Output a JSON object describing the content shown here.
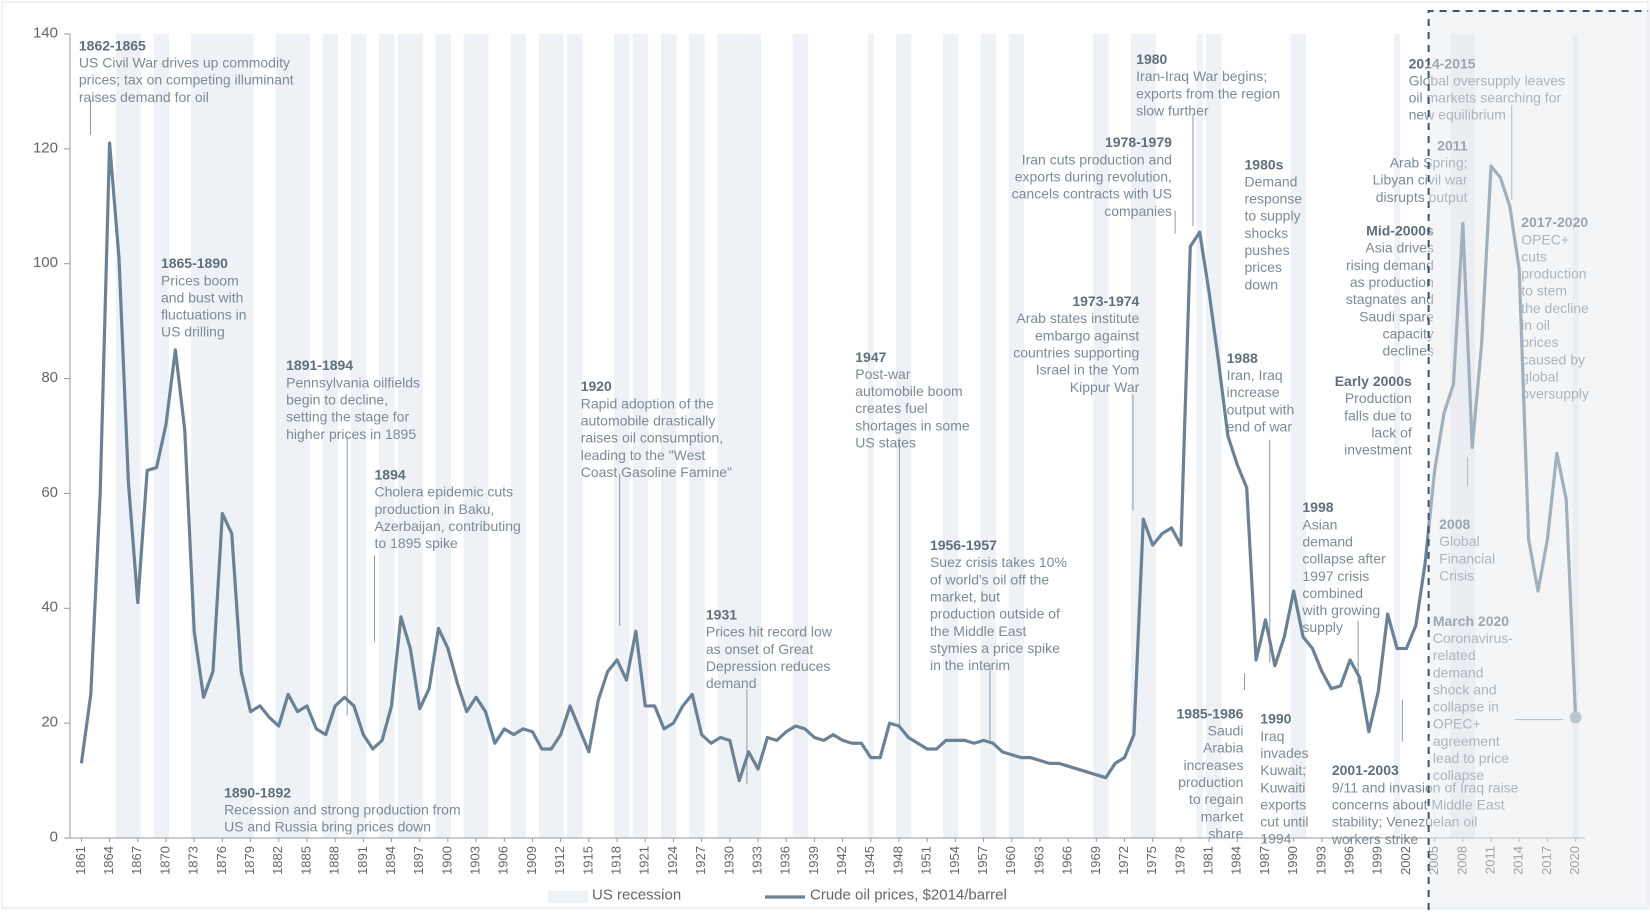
{
  "chart_data": {
    "type": "line",
    "ylim": [
      0,
      140
    ],
    "yticks": [
      0,
      20,
      40,
      60,
      80,
      100,
      120,
      140
    ],
    "xlim": [
      1860,
      2021
    ],
    "xticks": [
      1861,
      1864,
      1867,
      1870,
      1873,
      1876,
      1879,
      1882,
      1885,
      1888,
      1891,
      1894,
      1897,
      1900,
      1903,
      1906,
      1909,
      1912,
      1915,
      1918,
      1921,
      1924,
      1927,
      1930,
      1933,
      1936,
      1939,
      1942,
      1945,
      1948,
      1951,
      1954,
      1957,
      1960,
      1963,
      1966,
      1969,
      1972,
      1975,
      1978,
      1981,
      1984,
      1987,
      1990,
      1993,
      1996,
      1999,
      2002,
      2005,
      2008,
      2011,
      2014,
      2017,
      2020
    ],
    "x": [
      1861,
      1862,
      1863,
      1864,
      1865,
      1866,
      1867,
      1868,
      1869,
      1870,
      1871,
      1872,
      1873,
      1874,
      1875,
      1876,
      1877,
      1878,
      1879,
      1880,
      1881,
      1882,
      1883,
      1884,
      1885,
      1886,
      1887,
      1888,
      1889,
      1890,
      1891,
      1892,
      1893,
      1894,
      1895,
      1896,
      1897,
      1898,
      1899,
      1900,
      1901,
      1902,
      1903,
      1904,
      1905,
      1906,
      1907,
      1908,
      1909,
      1910,
      1911,
      1912,
      1913,
      1914,
      1915,
      1916,
      1917,
      1918,
      1919,
      1920,
      1921,
      1922,
      1923,
      1924,
      1925,
      1926,
      1927,
      1928,
      1929,
      1930,
      1931,
      1932,
      1933,
      1934,
      1935,
      1936,
      1937,
      1938,
      1939,
      1940,
      1941,
      1942,
      1943,
      1944,
      1945,
      1946,
      1947,
      1948,
      1949,
      1950,
      1951,
      1952,
      1953,
      1954,
      1955,
      1956,
      1957,
      1958,
      1959,
      1960,
      1961,
      1962,
      1963,
      1964,
      1965,
      1966,
      1967,
      1968,
      1969,
      1970,
      1971,
      1972,
      1973,
      1974,
      1975,
      1976,
      1977,
      1978,
      1979,
      1980,
      1981,
      1982,
      1983,
      1984,
      1985,
      1986,
      1987,
      1988,
      1989,
      1990,
      1991,
      1992,
      1993,
      1994,
      1995,
      1996,
      1997,
      1998,
      1999,
      2000,
      2001,
      2002,
      2003,
      2004,
      2005,
      2006,
      2007,
      2008,
      2009,
      2010,
      2011,
      2012,
      2013,
      2014,
      2015,
      2016,
      2017,
      2018,
      2019,
      2020
    ],
    "series": [
      {
        "name": "Crude oil prices, $2014/barrel",
        "color": "#6b8296",
        "values": [
          13,
          25,
          60,
          121,
          101,
          62,
          41,
          64,
          64.5,
          72,
          85,
          71,
          36,
          24.5,
          29,
          56.5,
          53,
          29,
          22,
          23,
          21,
          19.5,
          25,
          22,
          23,
          19,
          18,
          23,
          24.5,
          23,
          18,
          15.5,
          17,
          23,
          38.5,
          33,
          22.5,
          26,
          36.5,
          33,
          27,
          22,
          24.5,
          22,
          16.5,
          19,
          18,
          19,
          18.5,
          15.5,
          15.5,
          18,
          23,
          19,
          15,
          24,
          29,
          31,
          27.5,
          36,
          23,
          23,
          19,
          20,
          23,
          25,
          18,
          16.5,
          17.5,
          17,
          10,
          15,
          12,
          17.5,
          17,
          18.5,
          19.5,
          19,
          17.5,
          17,
          18,
          17,
          16.5,
          16.5,
          14,
          14,
          20,
          19.5,
          17.5,
          16.5,
          15.5,
          15.5,
          17,
          17,
          17,
          16.5,
          17,
          16.5,
          15,
          14.5,
          14,
          14,
          13.5,
          13,
          13,
          12.5,
          12,
          11.5,
          11,
          10.5,
          13,
          14,
          18,
          55.5,
          51,
          53,
          54,
          51,
          103,
          105.5,
          95,
          83,
          70,
          65,
          61,
          31,
          38,
          30,
          35,
          43,
          35,
          33,
          29,
          26,
          26.5,
          31,
          28,
          18.5,
          25.5,
          39,
          33,
          33,
          37,
          48,
          64,
          74,
          79,
          107,
          68,
          86,
          117,
          115,
          110,
          99,
          52,
          43,
          52,
          67,
          59,
          21
        ]
      }
    ],
    "recession_name": "US recession",
    "recession_color": "#eef1f5",
    "recessions": [
      {
        "start": 1865,
        "end": 1867
      },
      {
        "start": 1869,
        "end": 1870
      },
      {
        "start": 1873,
        "end": 1879
      },
      {
        "start": 1882,
        "end": 1885
      },
      {
        "start": 1887,
        "end": 1888
      },
      {
        "start": 1890,
        "end": 1891
      },
      {
        "start": 1893,
        "end": 1894
      },
      {
        "start": 1895,
        "end": 1897
      },
      {
        "start": 1899,
        "end": 1900
      },
      {
        "start": 1902,
        "end": 1904
      },
      {
        "start": 1907,
        "end": 1908
      },
      {
        "start": 1910,
        "end": 1912
      },
      {
        "start": 1913,
        "end": 1914
      },
      {
        "start": 1918,
        "end": 1919
      },
      {
        "start": 1920,
        "end": 1921
      },
      {
        "start": 1923,
        "end": 1924
      },
      {
        "start": 1926,
        "end": 1927
      },
      {
        "start": 1929,
        "end": 1933
      },
      {
        "start": 1937,
        "end": 1938
      },
      {
        "start": 1945,
        "end": 1945
      },
      {
        "start": 1948,
        "end": 1949
      },
      {
        "start": 1953,
        "end": 1954
      },
      {
        "start": 1957,
        "end": 1958
      },
      {
        "start": 1960,
        "end": 1961
      },
      {
        "start": 1969,
        "end": 1970
      },
      {
        "start": 1973,
        "end": 1975
      },
      {
        "start": 1980,
        "end": 1980
      },
      {
        "start": 1981,
        "end": 1982
      },
      {
        "start": 1990,
        "end": 1991
      },
      {
        "start": 2001,
        "end": 2001
      },
      {
        "start": 2007,
        "end": 2009
      },
      {
        "start": 2020,
        "end": 2020
      }
    ],
    "annotations": [
      {
        "title": "1862-1865",
        "lines": [
          "US Civil War drives up commodity",
          "prices; tax on competing illuminant",
          "raises demand for oil"
        ]
      },
      {
        "title": "1865-1890",
        "lines": [
          "Prices boom",
          "and bust with",
          "fluctuations in",
          "US drilling"
        ]
      },
      {
        "title": "1891-1894",
        "lines": [
          "Pennsylvania oilfields",
          "begin to decline,",
          "setting the stage for",
          "higher prices in 1895"
        ]
      },
      {
        "title": "1894",
        "lines": [
          "Cholera epidemic cuts",
          "production in Baku,",
          "Azerbaijan, contributing",
          "to 1895 spike"
        ]
      },
      {
        "title": "1890-1892",
        "lines": [
          "Recession and strong production from",
          "US and Russia bring prices down"
        ]
      },
      {
        "title": "1920",
        "lines": [
          "Rapid adoption of the",
          "automobile drastically",
          "raises oil consumption,",
          "leading to the \"West",
          "Coast Gasoline Famine\""
        ]
      },
      {
        "title": "1931",
        "lines": [
          "Prices hit record low",
          "as onset of Great",
          "Depression reduces",
          "demand"
        ]
      },
      {
        "title": "1947",
        "lines": [
          "Post-war",
          "automobile boom",
          "creates fuel",
          "shortages in some",
          "US states"
        ]
      },
      {
        "title": "1956-1957",
        "lines": [
          "Suez crisis takes 10%",
          "of world's oil off the",
          "market, but",
          "production outside of",
          "the Middle East",
          "stymies a price spike",
          "in the interim"
        ]
      },
      {
        "title": "1973-1974",
        "lines": [
          "Arab states institute",
          "embargo against",
          "countries supporting",
          "Israel in the Yom",
          "Kippur War"
        ]
      },
      {
        "title": "1978-1979",
        "lines": [
          "Iran cuts production and",
          "exports during revolution,",
          "cancels contracts with US",
          "companies"
        ]
      },
      {
        "title": "1980",
        "lines": [
          "Iran-Iraq War begins;",
          "exports from the region",
          "slow further"
        ]
      },
      {
        "title": "1980s",
        "lines": [
          "Demand",
          "response",
          "to supply",
          "shocks",
          "pushes",
          "prices",
          "down"
        ]
      },
      {
        "title": "1988",
        "lines": [
          "Iran, Iraq",
          "increase",
          "output with",
          "end of war"
        ]
      },
      {
        "title": "1985-1986",
        "lines": [
          "Saudi",
          "Arabia",
          "increases",
          "production",
          "to regain",
          "market",
          "share"
        ]
      },
      {
        "title": "1990",
        "lines": [
          "Iraq",
          "invades",
          "Kuwait;",
          "Kuwaiti",
          "exports",
          "cut until",
          "1994"
        ]
      },
      {
        "title": "Early 2000s",
        "lines": [
          "Production",
          "falls due to",
          "lack of",
          "investment"
        ]
      },
      {
        "title": "1998",
        "lines": [
          "Asian",
          "demand",
          "collapse after",
          "1997 crisis",
          "combined",
          "with growing",
          "supply"
        ]
      },
      {
        "title": "2001-2003",
        "lines": [
          "9/11 and invasion of Iraq raise",
          "concerns about Middle East",
          "stability; Venezuelan oil",
          "workers strike"
        ]
      },
      {
        "title": "Mid-2000s",
        "lines": [
          "Asia drives",
          "rising demand",
          "as production",
          "stagnates and",
          "Saudi spare",
          "capacity",
          "declines"
        ]
      },
      {
        "title": "2011",
        "lines": [
          "Arab Spring;",
          "Libyan civil war",
          "disrupts output"
        ]
      },
      {
        "title": "2014-2015",
        "lines": [
          "Global oversupply leaves",
          "oil markets searching for",
          "new equilibrium"
        ]
      },
      {
        "title": "2017-2020",
        "lines": [
          "OPEC+",
          "cuts",
          "production",
          "to stem",
          "the decline",
          "in oil",
          "prices",
          "caused by",
          "global",
          "oversupply"
        ]
      },
      {
        "title": "2008",
        "lines": [
          "Global",
          "Financial",
          "Crisis"
        ]
      },
      {
        "title": "March 2020",
        "lines": [
          "Coronavirus-",
          "related",
          "demand",
          "shock and",
          "collapse in",
          "OPEC+",
          "agreement",
          "lead to price",
          "collapse"
        ]
      }
    ]
  }
}
